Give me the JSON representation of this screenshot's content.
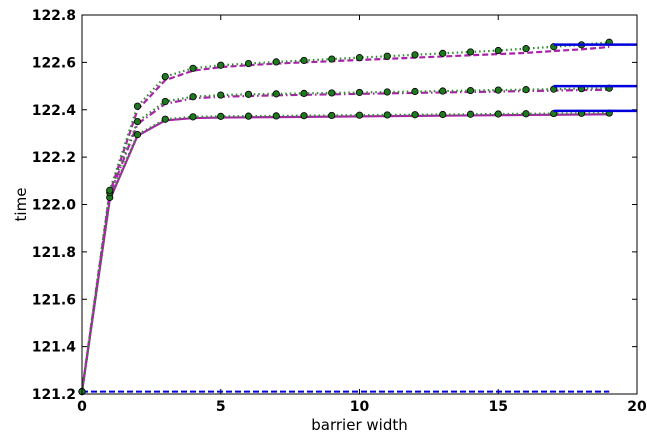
{
  "chart_data": {
    "type": "line",
    "title": "",
    "xlabel": "barrier width",
    "ylabel": "time",
    "xlim": [
      0,
      20
    ],
    "ylim": [
      121.2,
      122.8
    ],
    "xticks": [
      0,
      5,
      10,
      15,
      20
    ],
    "xtick_labels": [
      "0",
      "5",
      "10",
      "15",
      "20"
    ],
    "yticks": [
      121.2,
      121.4,
      121.6,
      121.8,
      122.0,
      122.2,
      122.4,
      122.6,
      122.8
    ],
    "ytick_labels": [
      "121.2",
      "121.4",
      "121.6",
      "121.8",
      "122.0",
      "122.2",
      "122.4",
      "122.6",
      "122.8"
    ],
    "grid": false,
    "legend": "none",
    "colors": {
      "magenta": "#aa22aa",
      "green": "#2e8b2e",
      "marker_fill": "#1f7a1f",
      "blue": "#0000dd"
    },
    "x": [
      0,
      1,
      2,
      3,
      4,
      5,
      6,
      7,
      8,
      9,
      10,
      11,
      12,
      13,
      14,
      15,
      16,
      17,
      18,
      19
    ],
    "series": [
      {
        "name": "",
        "group": "low",
        "style": "solid",
        "color": "magenta",
        "markers": false,
        "values": [
          121.21,
          122.02,
          122.29,
          122.355,
          122.365,
          122.367,
          122.368,
          122.369,
          122.37,
          122.371,
          122.372,
          122.373,
          122.374,
          122.375,
          122.376,
          122.377,
          122.378,
          122.379,
          122.38,
          122.381
        ]
      },
      {
        "name": "",
        "group": "low",
        "style": "dotted",
        "color": "green",
        "markers": true,
        "values": [
          121.21,
          122.03,
          122.295,
          122.36,
          122.37,
          122.372,
          122.373,
          122.374,
          122.375,
          122.376,
          122.377,
          122.378,
          122.379,
          122.38,
          122.381,
          122.382,
          122.383,
          122.384,
          122.385,
          122.386
        ]
      },
      {
        "name": "",
        "group": "mid",
        "style": "dashdot",
        "color": "magenta",
        "markers": false,
        "values": [
          121.21,
          122.04,
          122.34,
          122.425,
          122.448,
          122.455,
          122.458,
          122.461,
          122.463,
          122.465,
          122.467,
          122.469,
          122.471,
          122.473,
          122.475,
          122.477,
          122.479,
          122.481,
          122.483,
          122.485
        ]
      },
      {
        "name": "",
        "group": "mid",
        "style": "dotted",
        "color": "green",
        "markers": true,
        "values": [
          121.21,
          122.05,
          122.35,
          122.435,
          122.455,
          122.462,
          122.465,
          122.467,
          122.469,
          122.471,
          122.473,
          122.475,
          122.477,
          122.479,
          122.481,
          122.483,
          122.485,
          122.487,
          122.489,
          122.491
        ]
      },
      {
        "name": "",
        "group": "high",
        "style": "dashed",
        "color": "magenta",
        "markers": false,
        "values": [
          121.21,
          122.05,
          122.4,
          122.525,
          122.565,
          122.58,
          122.588,
          122.595,
          122.6,
          122.605,
          122.61,
          122.615,
          122.62,
          122.625,
          122.63,
          122.635,
          122.64,
          122.648,
          122.655,
          122.665
        ]
      },
      {
        "name": "",
        "group": "high",
        "style": "dotted",
        "color": "green",
        "markers": true,
        "values": [
          121.21,
          122.06,
          122.415,
          122.54,
          122.575,
          122.588,
          122.595,
          122.602,
          122.608,
          122.614,
          122.62,
          122.626,
          122.632,
          122.638,
          122.644,
          122.65,
          122.658,
          122.666,
          122.674,
          122.685
        ]
      },
      {
        "name": "",
        "group": "baseline",
        "style": "dashed",
        "color": "blue",
        "markers": false,
        "x": [
          0,
          19
        ],
        "values": [
          121.21,
          121.21
        ]
      }
    ],
    "reference_lines": [
      {
        "color": "blue",
        "x": [
          17,
          20
        ],
        "y": 122.395
      },
      {
        "color": "blue",
        "x": [
          17,
          20
        ],
        "y": 122.5
      },
      {
        "color": "blue",
        "x": [
          17,
          20
        ],
        "y": 122.675
      }
    ]
  }
}
